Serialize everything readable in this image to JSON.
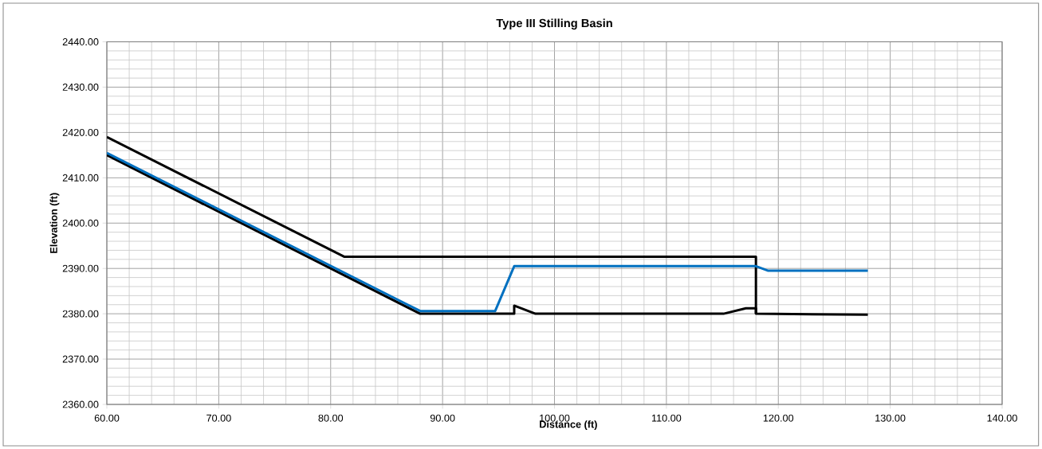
{
  "chart_data": {
    "type": "line",
    "title": "Type III Stilling Basin",
    "xlabel": "Distance (ft)",
    "ylabel": "Elevation (ft)",
    "series": [
      {
        "color": "#000000",
        "x": [
          60,
          81.2,
          118,
          118
        ],
        "values": [
          2419,
          2392.6,
          2392.6,
          2380
        ]
      },
      {
        "color": "#000000",
        "x": [
          60,
          88,
          96.4,
          96.4,
          98.3,
          115.1,
          117.1,
          118,
          118,
          128
        ],
        "values": [
          2415,
          2380,
          2380,
          2381.8,
          2380,
          2380,
          2381.2,
          2381.2,
          2380,
          2379.8
        ]
      },
      {
        "color": "#0070c0",
        "x": [
          60,
          88,
          94.7,
          96.4,
          118,
          119.1,
          128
        ],
        "values": [
          2415.5,
          2380.6,
          2380.6,
          2390.5,
          2390.5,
          2389.5,
          2389.5
        ]
      }
    ],
    "xlim": [
      60,
      140
    ],
    "ylim": [
      2360,
      2440
    ],
    "xticks": [
      {
        "value": 60,
        "label": "60.00"
      },
      {
        "value": 70,
        "label": "70.00"
      },
      {
        "value": 80,
        "label": "80.00"
      },
      {
        "value": 90,
        "label": "90.00"
      },
      {
        "value": 100,
        "label": "100.00"
      },
      {
        "value": 110,
        "label": "110.00"
      },
      {
        "value": 120,
        "label": "120.00"
      },
      {
        "value": 130,
        "label": "130.00"
      },
      {
        "value": 140,
        "label": "140.00"
      }
    ],
    "yticks": [
      {
        "value": 2360,
        "label": "2360.00"
      },
      {
        "value": 2370,
        "label": "2370.00"
      },
      {
        "value": 2380,
        "label": "2380.00"
      },
      {
        "value": 2390,
        "label": "2390.00"
      },
      {
        "value": 2400,
        "label": "2400.00"
      },
      {
        "value": 2410,
        "label": "2410.00"
      },
      {
        "value": 2420,
        "label": "2420.00"
      },
      {
        "value": 2430,
        "label": "2430.00"
      },
      {
        "value": 2440,
        "label": "2440.00"
      }
    ],
    "grid": true,
    "legend": false,
    "marker": "none",
    "line_style": "solid"
  }
}
